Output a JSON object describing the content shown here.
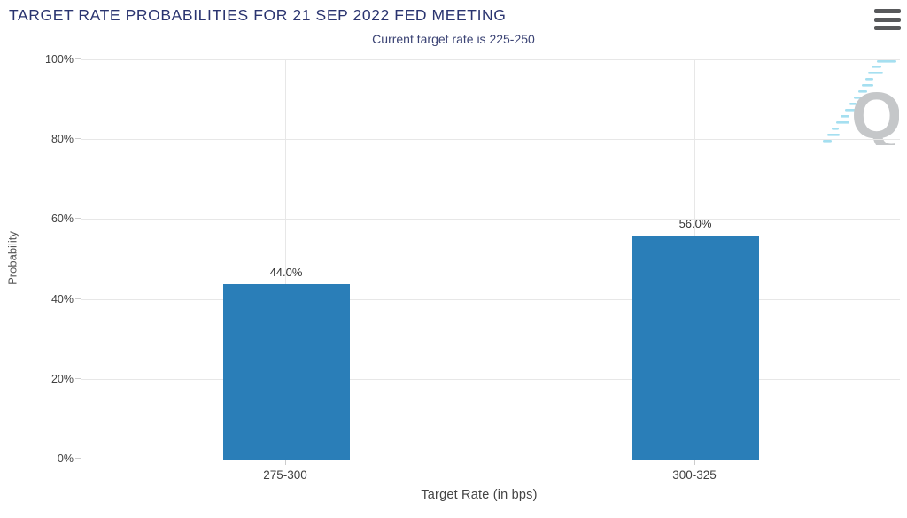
{
  "chart_data": {
    "type": "bar",
    "title": "TARGET RATE PROBABILITIES FOR 21 SEP 2022 FED MEETING",
    "subtitle": "Current target rate is 225-250",
    "categories": [
      "275-300",
      "300-325"
    ],
    "values": [
      44.0,
      56.0
    ],
    "value_labels": [
      "44.0%",
      "56.0%"
    ],
    "xlabel": "Target Rate (in bps)",
    "ylabel": "Probability",
    "ylim": [
      0,
      100
    ],
    "yticks": [
      0,
      20,
      40,
      60,
      80,
      100
    ],
    "ytick_labels": [
      "0%",
      "20%",
      "40%",
      "60%",
      "80%",
      "100%"
    ],
    "grid": true,
    "legend": "none",
    "bar_color": "#2a7eb8"
  },
  "icons": {
    "menu": "hamburger-menu-icon",
    "watermark": "quikstrike-q-watermark-icon"
  },
  "colors": {
    "title": "#2a3470",
    "subtitle": "#3b4374",
    "bar": "#2a7eb8",
    "gridline": "#e7e7e7",
    "axis_line": "#cccccc",
    "tick_label": "#404040",
    "value_label": "#333333",
    "menu_icon": "#58595b",
    "watermark_q": "#c5c7c9",
    "watermark_dash": "#a5dff0"
  }
}
